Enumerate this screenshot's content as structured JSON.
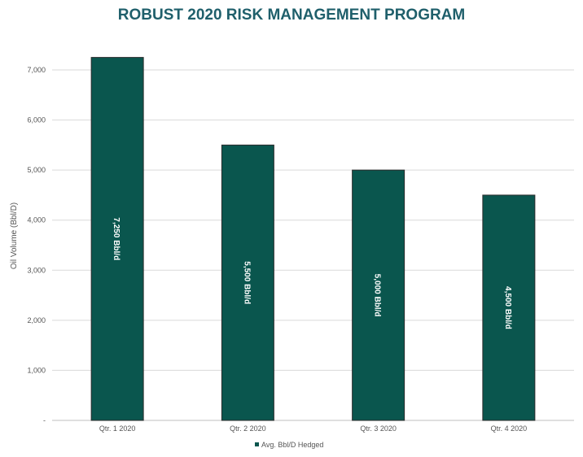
{
  "chart_data": {
    "type": "bar",
    "title": "ROBUST 2020 RISK MANAGEMENT PROGRAM",
    "xlabel": "",
    "ylabel": "Oil Volume (Bbl/D)",
    "ylim": [
      0,
      7000
    ],
    "yticks": [
      "-",
      "1,000",
      "2,000",
      "3,000",
      "4,000",
      "5,000",
      "6,000",
      "7,000"
    ],
    "categories": [
      "Qtr. 1 2020",
      "Qtr. 2 2020",
      "Qtr. 3 2020",
      "Qtr. 4 2020"
    ],
    "series": [
      {
        "name": "Avg. Bbl/D Hedged",
        "values": [
          7250,
          5500,
          5000,
          4500
        ],
        "labels": [
          "7,250 Bbl/d",
          "5,500 Bbl/d",
          "5,000 Bbl/d",
          "4,500 Bbl/d"
        ],
        "color": "#0a564e"
      }
    ],
    "grid": true,
    "legend": "bottom"
  }
}
